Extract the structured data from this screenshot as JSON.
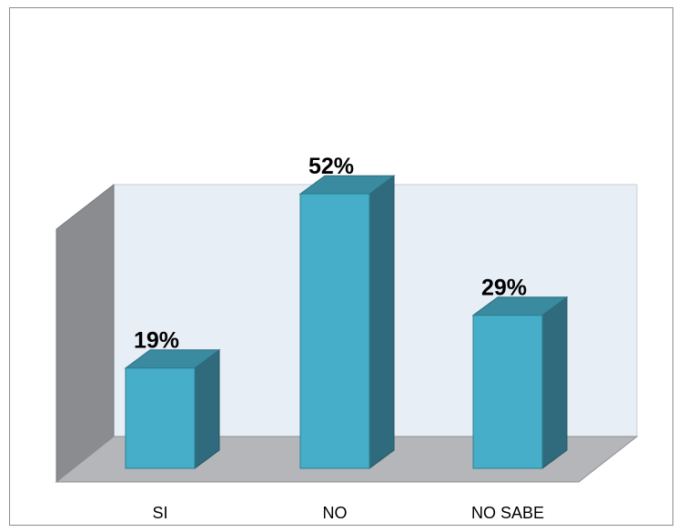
{
  "chart_data": {
    "type": "bar",
    "style": "3d-column",
    "categories": [
      "SI",
      "NO",
      "NO SABE"
    ],
    "values": [
      19,
      52,
      29
    ],
    "data_labels": [
      "19%",
      "52%",
      "29%"
    ],
    "ylim": [
      0,
      56
    ],
    "title": "",
    "xlabel": "",
    "ylabel": "",
    "legend": "none",
    "grid": false,
    "colors": {
      "bar_front": "#46AEC8",
      "bar_side": "#2F6B7C",
      "bar_top": "#3A8AA0",
      "back_wall": "#E8EEF6",
      "side_wall": "#8A8C8F",
      "floor": "#B4B6B9"
    }
  }
}
